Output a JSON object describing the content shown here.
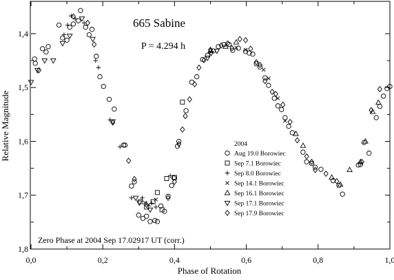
{
  "chart_data": {
    "type": "scatter",
    "title": "665 Sabine",
    "subtitle": "P = 4.294 h",
    "xlabel": "Phase of Rotation",
    "ylabel": "Relative Magnitude",
    "annotation": "Zero Phase at 2004 Sep 17.02917 UT (corr.)",
    "xlim": [
      0.0,
      1.0
    ],
    "ylim": [
      1.8,
      1.34
    ],
    "y_inverted": true,
    "x_ticks": [
      "0,0",
      "0,2",
      "0,4",
      "0,6",
      "0,8",
      "1,0"
    ],
    "x_tick_values": [
      0.0,
      0.2,
      0.4,
      0.6,
      0.8,
      1.0
    ],
    "y_ticks": [
      "1,4",
      "1,5",
      "1,6",
      "1,7",
      "1,8"
    ],
    "y_tick_values": [
      1.4,
      1.5,
      1.6,
      1.7,
      1.8
    ],
    "grid": false,
    "legend_title": "2004",
    "legend_position": "lower-right",
    "series": [
      {
        "name": "Aug 19.0 Borowiec",
        "marker": "circle",
        "points": [
          [
            0.01,
            1.447
          ],
          [
            0.012,
            1.455
          ],
          [
            0.032,
            1.428
          ],
          [
            0.042,
            1.434
          ],
          [
            0.048,
            1.424
          ],
          [
            0.078,
            1.384
          ],
          [
            0.088,
            1.408
          ],
          [
            0.1,
            1.412
          ],
          [
            0.108,
            1.388
          ],
          [
            0.118,
            1.382
          ],
          [
            0.132,
            1.376
          ],
          [
            0.138,
            1.357
          ],
          [
            0.152,
            1.388
          ],
          [
            0.162,
            1.402
          ],
          [
            0.17,
            1.392
          ],
          [
            0.182,
            1.442
          ],
          [
            0.192,
            1.48
          ],
          [
            0.202,
            1.498
          ],
          [
            0.218,
            1.522
          ],
          [
            0.232,
            1.54
          ],
          [
            0.258,
            1.607
          ],
          [
            0.262,
            1.607
          ],
          [
            0.28,
            1.683
          ],
          [
            0.288,
            1.675
          ],
          [
            0.3,
            1.737
          ],
          [
            0.312,
            1.743
          ],
          [
            0.322,
            1.739
          ],
          [
            0.332,
            1.749
          ],
          [
            0.345,
            1.747
          ],
          [
            0.352,
            1.749
          ],
          [
            0.362,
            1.72
          ],
          [
            0.372,
            1.73
          ],
          [
            0.382,
            1.702
          ],
          [
            0.392,
            1.682
          ],
          [
            0.398,
            1.668
          ],
          [
            0.408,
            1.609
          ],
          [
            0.412,
            1.6
          ],
          [
            0.432,
            1.543
          ],
          [
            0.448,
            1.49
          ],
          [
            0.462,
            1.48
          ],
          [
            0.478,
            1.448
          ],
          [
            0.492,
            1.44
          ],
          [
            0.508,
            1.432
          ],
          [
            0.522,
            1.424
          ],
          [
            0.538,
            1.42
          ],
          [
            0.552,
            1.42
          ],
          [
            0.562,
            1.431
          ],
          [
            0.578,
            1.427
          ],
          [
            0.598,
            1.433
          ],
          [
            0.608,
            1.436
          ],
          [
            0.618,
            1.438
          ],
          [
            0.628,
            1.456
          ],
          [
            0.638,
            1.462
          ],
          [
            0.652,
            1.482
          ],
          [
            0.662,
            1.496
          ],
          [
            0.678,
            1.52
          ],
          [
            0.688,
            1.534
          ],
          [
            0.698,
            1.541
          ],
          [
            0.708,
            1.556
          ],
          [
            0.718,
            1.572
          ],
          [
            0.728,
            1.584
          ],
          [
            0.758,
            1.62
          ],
          [
            0.768,
            1.638
          ],
          [
            0.782,
            1.641
          ],
          [
            0.792,
            1.648
          ],
          [
            0.808,
            1.652
          ],
          [
            0.842,
            1.673
          ],
          [
            0.858,
            1.682
          ],
          [
            0.868,
            1.698
          ],
          [
            0.912,
            1.644
          ],
          [
            0.918,
            1.643
          ],
          [
            0.928,
            1.602
          ],
          [
            0.942,
            1.622
          ],
          [
            0.962,
            1.556
          ],
          [
            0.972,
            1.535
          ],
          [
            0.982,
            1.516
          ],
          [
            0.992,
            1.502
          ],
          [
            1.0,
            1.498
          ]
        ]
      },
      {
        "name": "Sep 7.1 Borowiec",
        "marker": "square",
        "points": [
          [
            0.305,
            1.712
          ],
          [
            0.322,
            1.722
          ],
          [
            0.34,
            1.712
          ],
          [
            0.352,
            1.695
          ],
          [
            0.365,
            1.727
          ],
          [
            0.378,
            1.669
          ],
          [
            0.422,
            1.527
          ],
          [
            0.4,
            1.667
          ]
        ]
      },
      {
        "name": "Sep 8.0 Borowiec",
        "marker": "plus",
        "points": [
          [
            0.092,
            1.402
          ],
          [
            0.102,
            1.384
          ],
          [
            0.112,
            1.367
          ],
          [
            0.123,
            1.372
          ],
          [
            0.148,
            1.38
          ],
          [
            0.18,
            1.45
          ],
          [
            0.188,
            1.463
          ],
          [
            0.22,
            1.56
          ],
          [
            0.248,
            1.61
          ],
          [
            0.28,
            1.705
          ],
          [
            0.31,
            1.705
          ],
          [
            0.336,
            1.715
          ],
          [
            0.348,
            1.722
          ],
          [
            0.388,
            1.664
          ]
        ]
      },
      {
        "name": "Sep 14.1 Borowiec",
        "marker": "x",
        "points": [
          [
            0.318,
            1.714
          ],
          [
            0.328,
            1.718
          ],
          [
            0.348,
            1.708
          ],
          [
            0.572,
            1.426
          ],
          [
            0.598,
            1.43
          ],
          [
            0.648,
            1.467
          ],
          [
            0.662,
            1.483
          ],
          [
            0.688,
            1.52
          ],
          [
            0.708,
            1.562
          ]
        ]
      },
      {
        "name": "Sep 16.1 Borowiec",
        "marker": "triangle-up",
        "points": [
          [
            0.5,
            1.432
          ],
          [
            0.542,
            1.424
          ],
          [
            0.572,
            1.416
          ],
          [
            0.738,
            1.586
          ],
          [
            0.758,
            1.608
          ],
          [
            0.838,
            1.667
          ],
          [
            0.862,
            1.68
          ],
          [
            0.888,
            1.653
          ],
          [
            0.918,
            1.638
          ],
          [
            0.932,
            1.6
          ],
          [
            0.952,
            1.545
          ],
          [
            0.968,
            1.528
          ]
        ]
      },
      {
        "name": "Sep 17.1 Borowiec",
        "marker": "triangle-down",
        "points": [
          [
            0.0,
            1.49
          ],
          [
            0.018,
            1.468
          ],
          [
            0.038,
            1.45
          ],
          [
            0.062,
            1.45
          ],
          [
            0.088,
            1.418
          ],
          [
            0.108,
            1.404
          ],
          [
            0.142,
            1.372
          ],
          [
            0.172,
            1.41
          ],
          [
            0.228,
            1.563
          ],
          [
            0.292,
            1.705
          ],
          [
            0.302,
            1.714
          ],
          [
            0.332,
            1.727
          ],
          [
            0.492,
            1.445
          ],
          [
            0.502,
            1.436
          ],
          [
            0.518,
            1.432
          ]
        ]
      },
      {
        "name": "Sep 17.9 Borowiec",
        "marker": "diamond",
        "points": [
          [
            0.022,
            1.468
          ],
          [
            0.118,
            1.368
          ],
          [
            0.158,
            1.38
          ],
          [
            0.176,
            1.42
          ],
          [
            0.228,
            1.565
          ],
          [
            0.272,
            1.636
          ],
          [
            0.288,
            1.67
          ],
          [
            0.322,
            1.718
          ],
          [
            0.382,
            1.705
          ],
          [
            0.4,
            1.675
          ],
          [
            0.412,
            1.605
          ],
          [
            0.422,
            1.578
          ],
          [
            0.43,
            1.553
          ],
          [
            0.442,
            1.522
          ],
          [
            0.456,
            1.494
          ],
          [
            0.468,
            1.463
          ],
          [
            0.482,
            1.449
          ],
          [
            0.5,
            1.43
          ],
          [
            0.53,
            1.422
          ],
          [
            0.548,
            1.418
          ],
          [
            0.56,
            1.427
          ],
          [
            0.582,
            1.41
          ],
          [
            0.598,
            1.412
          ],
          [
            0.612,
            1.428
          ],
          [
            0.628,
            1.453
          ],
          [
            0.638,
            1.458
          ],
          [
            0.652,
            1.488
          ],
          [
            0.672,
            1.508
          ],
          [
            0.682,
            1.512
          ],
          [
            0.702,
            1.532
          ],
          [
            0.722,
            1.564
          ],
          [
            0.742,
            1.598
          ],
          [
            0.768,
            1.628
          ],
          [
            0.782,
            1.638
          ],
          [
            0.792,
            1.653
          ],
          [
            0.822,
            1.66
          ],
          [
            0.852,
            1.674
          ],
          [
            0.922,
            1.638
          ],
          [
            0.948,
            1.542
          ],
          [
            0.972,
            1.503
          ]
        ]
      }
    ]
  }
}
